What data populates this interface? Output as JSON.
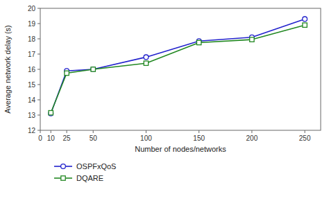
{
  "chart_data": {
    "type": "line",
    "x_label": "Number of nodes/networks",
    "y_label": "Average network delay (s)",
    "x": [
      10,
      25,
      50,
      100,
      150,
      200,
      250
    ],
    "series": [
      {
        "name": "OSPFxQoS",
        "color": "#2222cc",
        "marker": "circle",
        "values": [
          13.1,
          15.9,
          16.0,
          16.8,
          17.85,
          18.1,
          19.3
        ]
      },
      {
        "name": "DQARE",
        "color": "#228822",
        "marker": "square",
        "values": [
          13.15,
          15.75,
          16.0,
          16.4,
          17.75,
          17.95,
          18.9
        ]
      }
    ],
    "xlim": [
      0,
      265
    ],
    "ylim": [
      12,
      20
    ],
    "xticks": [
      0,
      10,
      25,
      50,
      100,
      150,
      200,
      250
    ],
    "yticks": [
      12,
      13,
      14,
      15,
      16,
      17,
      18,
      19,
      20
    ],
    "grid": false,
    "legend": "bottom"
  }
}
